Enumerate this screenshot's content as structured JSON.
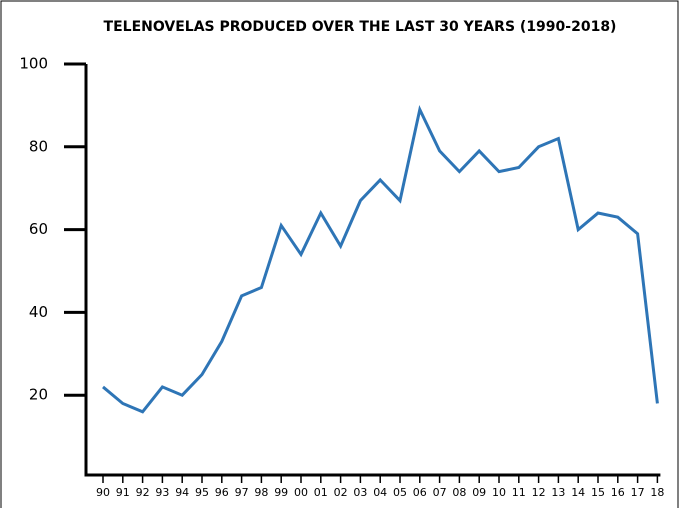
{
  "chart_data": {
    "type": "line",
    "title": "TELENOVELAS PRODUCED OVER THE LAST 30 YEARS (1990-2018)",
    "categories": [
      "90",
      "91",
      "92",
      "93",
      "94",
      "95",
      "96",
      "97",
      "98",
      "99",
      "00",
      "01",
      "02",
      "03",
      "04",
      "05",
      "06",
      "07",
      "08",
      "09",
      "10",
      "11",
      "12",
      "13",
      "14",
      "15",
      "16",
      "17",
      "18"
    ],
    "series": [
      {
        "name": null,
        "color": "#2e75b6",
        "values": [
          22,
          18,
          16,
          22,
          20,
          25,
          33,
          44,
          46,
          61,
          54,
          64,
          56,
          67,
          72,
          67,
          89,
          79,
          74,
          79,
          74,
          75,
          80,
          82,
          60,
          64,
          63,
          59,
          18
        ]
      }
    ],
    "ylim": [
      0,
      100
    ],
    "yticks": [
      20,
      40,
      60,
      80,
      100
    ]
  }
}
